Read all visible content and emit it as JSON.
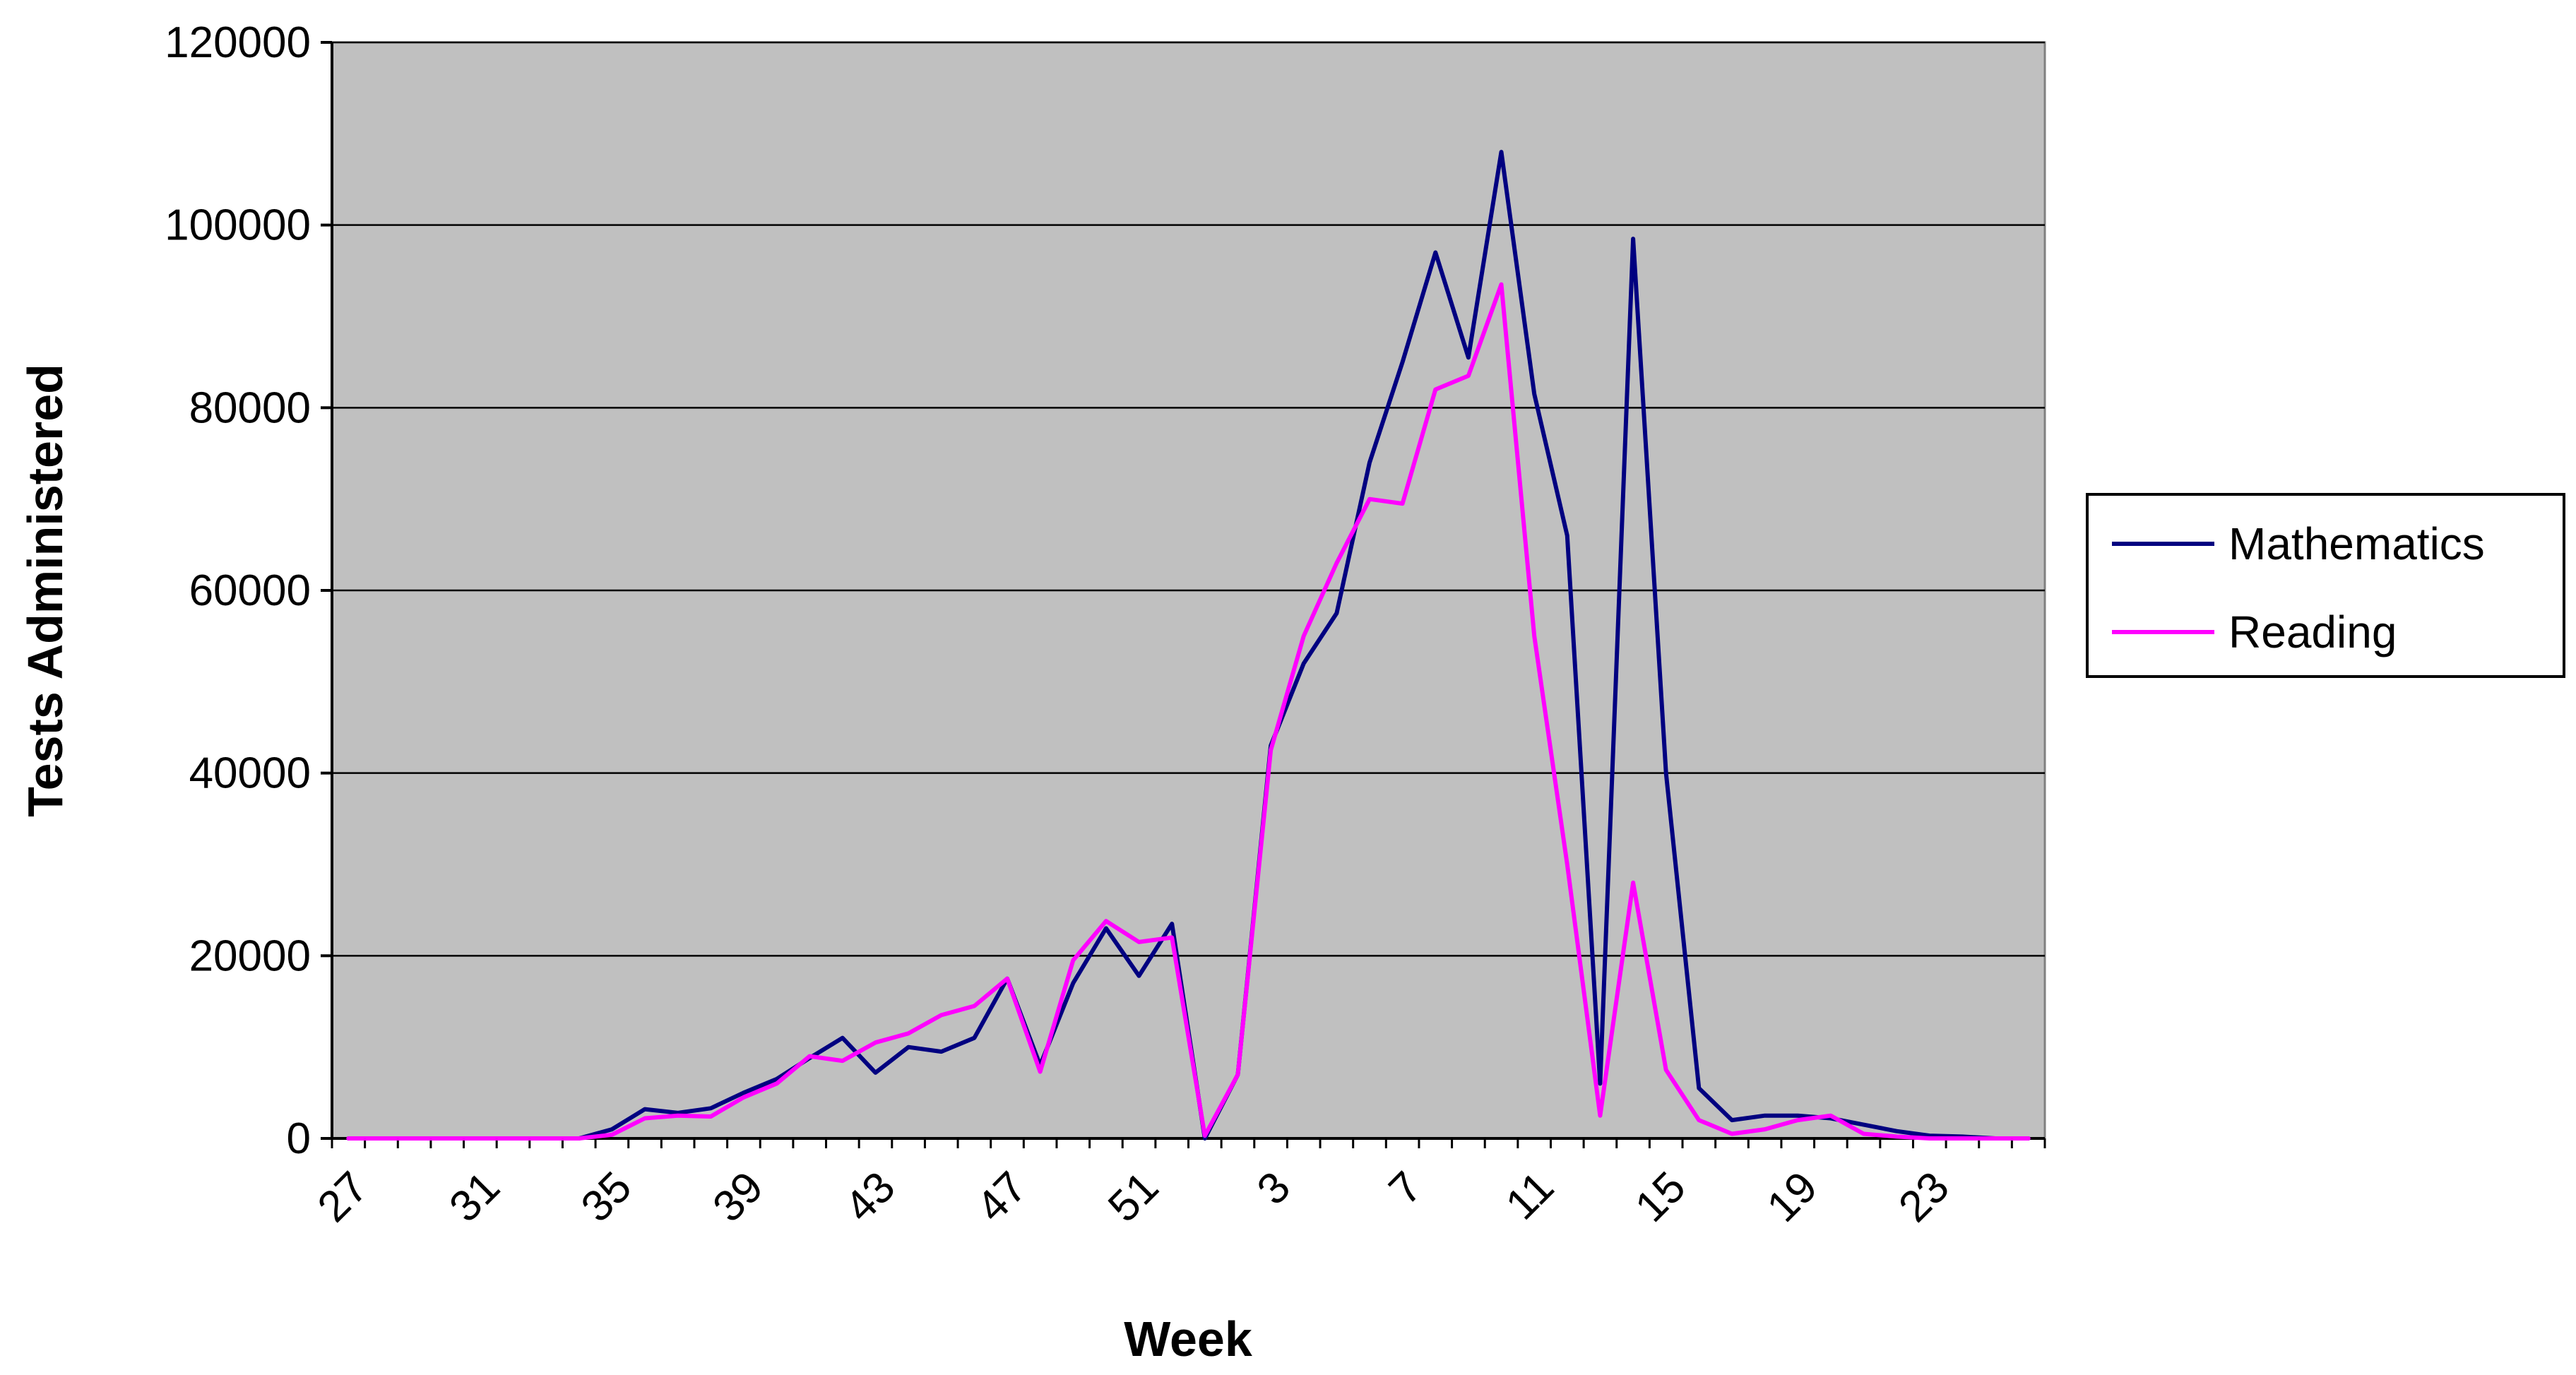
{
  "chart_data": {
    "type": "line",
    "title": "",
    "xlabel": "Week",
    "ylabel": "Tests Administered",
    "ylim": [
      0,
      120000
    ],
    "yticks": [
      0,
      20000,
      40000,
      60000,
      80000,
      100000,
      120000
    ],
    "x": [
      27,
      28,
      29,
      30,
      31,
      32,
      33,
      34,
      35,
      36,
      37,
      38,
      39,
      40,
      41,
      42,
      43,
      44,
      45,
      46,
      47,
      48,
      49,
      50,
      51,
      52,
      1,
      2,
      3,
      4,
      5,
      6,
      7,
      8,
      9,
      10,
      11,
      12,
      13,
      14,
      15,
      16,
      17,
      18,
      19,
      20,
      21,
      22,
      23,
      24,
      25,
      26
    ],
    "x_tick_labels": [
      "27",
      "31",
      "35",
      "39",
      "43",
      "47",
      "51",
      "3",
      "7",
      "11",
      "15",
      "19",
      "23"
    ],
    "grid": "horizontal",
    "legend_position": "right",
    "plot_background": "#c0c0c0",
    "series": [
      {
        "name": "Mathematics",
        "color": "#000080",
        "values": [
          0,
          0,
          0,
          0,
          0,
          0,
          0,
          0,
          1000,
          3200,
          2800,
          3300,
          5000,
          6500,
          8800,
          11000,
          7200,
          10000,
          9500,
          11000,
          17500,
          8000,
          17000,
          23000,
          17800,
          23500,
          0,
          7000,
          43000,
          52000,
          57500,
          74000,
          85000,
          97000,
          85500,
          108000,
          81500,
          66000,
          6000,
          98500,
          40000,
          5500,
          2000,
          2500,
          2500,
          2200,
          1500,
          800,
          300,
          200,
          0,
          0
        ]
      },
      {
        "name": "Reading",
        "color": "#ff00ff",
        "values": [
          0,
          0,
          0,
          0,
          0,
          0,
          0,
          0,
          400,
          2200,
          2500,
          2400,
          4500,
          6000,
          9000,
          8500,
          10500,
          11500,
          13500,
          14500,
          17500,
          7300,
          19500,
          23800,
          21500,
          22000,
          300,
          7000,
          42500,
          55000,
          63000,
          70000,
          69500,
          82000,
          83500,
          93500,
          55000,
          30000,
          2500,
          28000,
          7500,
          2000,
          500,
          1000,
          2000,
          2500,
          500,
          200,
          0,
          0,
          0,
          0
        ]
      }
    ]
  }
}
